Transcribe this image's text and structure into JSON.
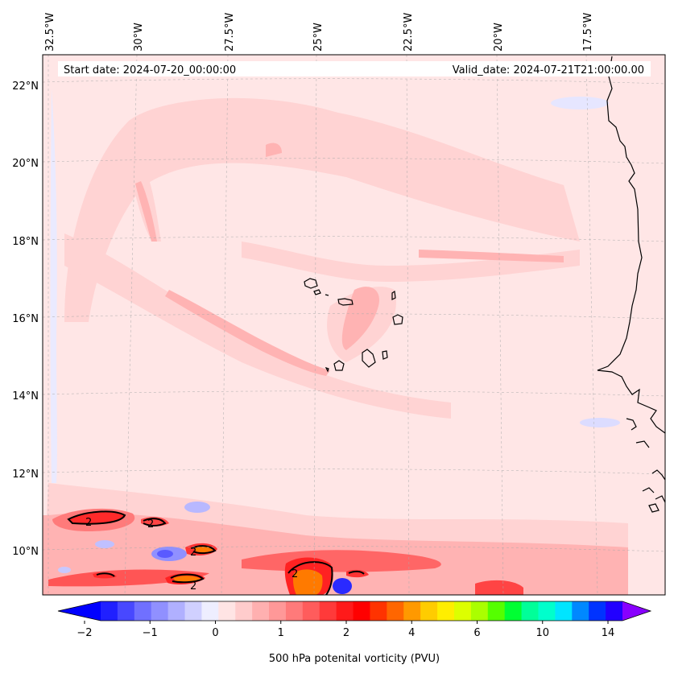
{
  "header": {
    "start_date": "Start date: 2024-07-20_00:00:00",
    "valid_date": "Valid_date: 2024-07-21T21:00:00.00"
  },
  "map": {
    "lon_labels": [
      "32.5°W",
      "30°W",
      "27.5°W",
      "25°W",
      "22.5°W",
      "20°W",
      "17.5°W"
    ],
    "lat_labels": [
      "22°N",
      "20°N",
      "18°N",
      "16°N",
      "14°N",
      "12°N",
      "10°N"
    ],
    "contour_label": "2"
  },
  "colorbar": {
    "label": "500 hPa potenital vorticity (PVU)",
    "ticks": [
      "−2",
      "−1",
      "0",
      "1",
      "2",
      "4",
      "6",
      "10",
      "14"
    ],
    "colors": [
      "#0000ff",
      "#2020ff",
      "#4848ff",
      "#7070ff",
      "#9090ff",
      "#b0b0ff",
      "#d0d0ff",
      "#eeeeff",
      "#ffe4e4",
      "#ffcccc",
      "#ffb0b0",
      "#ff9898",
      "#ff7a7a",
      "#ff5c5c",
      "#ff3a3a",
      "#ff1a1a",
      "#ff0000",
      "#ff3300",
      "#ff6600",
      "#ff9900",
      "#ffcc00",
      "#ffee00",
      "#ddff00",
      "#aaff00",
      "#55ff00",
      "#00ff33",
      "#00ff99",
      "#00ffcc",
      "#00e5ff",
      "#0088ff",
      "#0033ff",
      "#2200ff",
      "#8800ff"
    ]
  }
}
